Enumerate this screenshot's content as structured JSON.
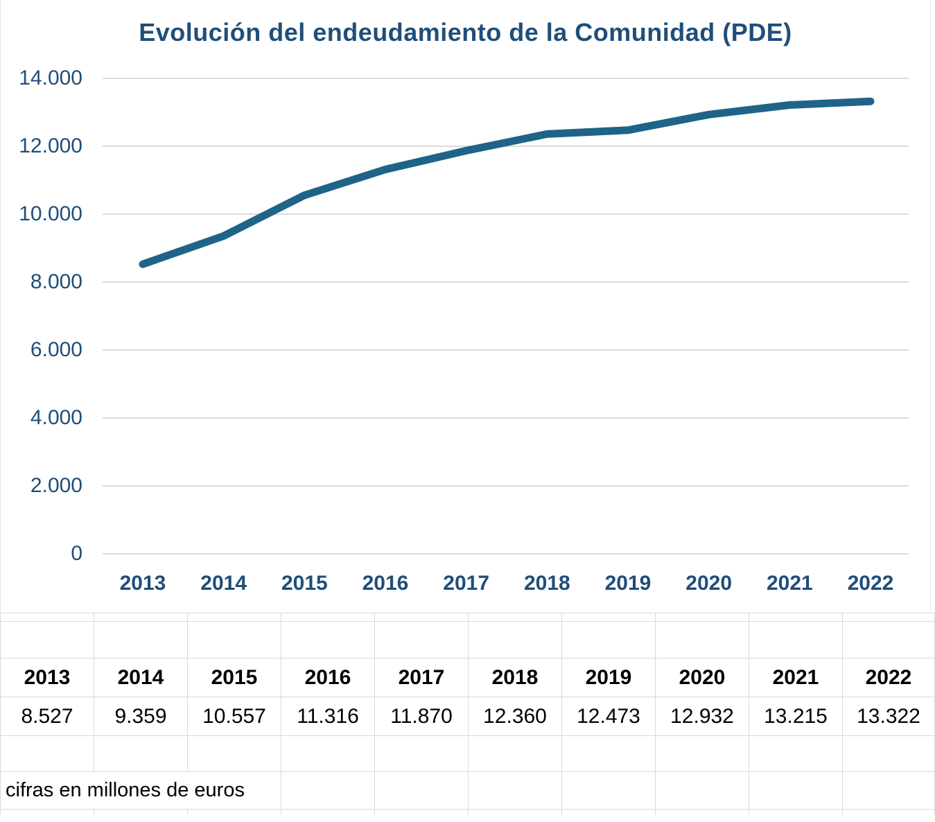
{
  "chart_data": {
    "type": "line",
    "title": "Evolución del endeudamiento de la Comunidad (PDE)",
    "categories": [
      "2013",
      "2014",
      "2015",
      "2016",
      "2017",
      "2018",
      "2019",
      "2020",
      "2021",
      "2022"
    ],
    "values": [
      8527,
      9359,
      10557,
      11316,
      11870,
      12360,
      12473,
      12932,
      13215,
      13322
    ],
    "value_labels": [
      "8.527",
      "9.359",
      "10.557",
      "11.316",
      "11.870",
      "12.360",
      "12.473",
      "12.932",
      "13.215",
      "13.322"
    ],
    "xlabel": "",
    "ylabel": "",
    "ylim": [
      0,
      14000
    ],
    "ytick_values": [
      0,
      2000,
      4000,
      6000,
      8000,
      10000,
      12000,
      14000
    ],
    "ytick_labels": [
      "0",
      "2.000",
      "4.000",
      "6.000",
      "8.000",
      "10.000",
      "12.000",
      "14.000"
    ],
    "grid": true,
    "legend": "none",
    "line_color": "#1F6488"
  },
  "footnote": {
    "text": "cifras en millones de euros"
  },
  "colors": {
    "title_text": "#1F4E79",
    "axis_text": "#1F4E79",
    "line": "#1F6488",
    "gridline": "#DBDBDB",
    "table_header_bg": "#D9E7F5",
    "table_border": "#000000",
    "sheet_gridline": "#D9D9D9"
  }
}
